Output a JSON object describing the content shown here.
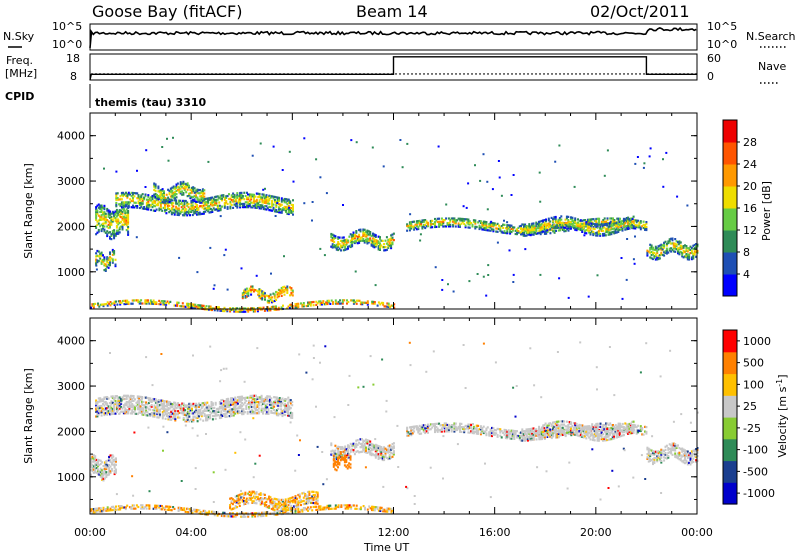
{
  "header": {
    "station": "Goose Bay (fitACF)",
    "beam": "Beam 14",
    "date": "02/Oct/2011"
  },
  "panels": {
    "nsky": {
      "label": "N.Sky",
      "ticks": [
        "10^5",
        "10^0"
      ]
    },
    "nsearch": {
      "label": "N.Search",
      "ticks": [
        "10^5",
        "10^0"
      ]
    },
    "freq": {
      "label_line1": "Freq.",
      "label_line2": "[MHz]",
      "ticks": [
        "18",
        "8"
      ]
    },
    "nave": {
      "label": "Nave",
      "ticks": [
        "60",
        "0"
      ]
    },
    "cpid": {
      "label": "CPID",
      "value": "themis (tau) 3310"
    }
  },
  "colors": {
    "power_scale": [
      "#0000ff",
      "#1e4fb4",
      "#2e8b57",
      "#66cc44",
      "#eedd00",
      "#ff9900",
      "#ff5500",
      "#ee0000"
    ],
    "velocity_scale": [
      "#0000cc",
      "#1a3e8f",
      "#2e8b57",
      "#88cc33",
      "#c8c8c8",
      "#ffc000",
      "#ff8000",
      "#ff0000"
    ],
    "ground_scatter": "#bebebe"
  },
  "chart_data": [
    {
      "type": "heatmap",
      "title": "",
      "xlabel": "Time UT",
      "ylabel": "Slant Range [km]",
      "xlim": [
        "00:00",
        "24:00"
      ],
      "ylim": [
        180,
        4500
      ],
      "yticks": [
        "1000",
        "2000",
        "3000",
        "4000"
      ],
      "xticks": [
        "00:00",
        "04:00",
        "08:00",
        "12:00",
        "16:00",
        "20:00",
        "00:00"
      ],
      "colorbar": {
        "label": "Power [dB]",
        "ticks": [
          "4",
          "8",
          "12",
          "16",
          "20",
          "24",
          "28"
        ],
        "range": [
          0,
          32
        ]
      },
      "bands": [
        {
          "t_start": 0.2,
          "t_end": 1.0,
          "range_center": 1250,
          "thickness": 300
        },
        {
          "t_start": 0.2,
          "t_end": 1.5,
          "range_center": 2100,
          "thickness": 600
        },
        {
          "t_start": 1.0,
          "t_end": 8.0,
          "range_center": 2500,
          "thickness": 350
        },
        {
          "t_start": 2.5,
          "t_end": 4.5,
          "range_center": 2750,
          "thickness": 300
        },
        {
          "t_start": 9.5,
          "t_end": 12.0,
          "range_center": 1700,
          "thickness": 300
        },
        {
          "t_start": 12.5,
          "t_end": 22.0,
          "range_center": 2000,
          "thickness": 200
        },
        {
          "t_start": 17.0,
          "t_end": 21.5,
          "range_center": 2000,
          "thickness": 250
        },
        {
          "t_start": 22.0,
          "t_end": 24.0,
          "range_center": 1500,
          "thickness": 300
        },
        {
          "t_start": 0.0,
          "t_end": 12.0,
          "range_center": 250,
          "thickness": 100
        },
        {
          "t_start": 6.0,
          "t_end": 8.0,
          "range_center": 500,
          "thickness": 200
        }
      ]
    },
    {
      "type": "heatmap",
      "title": "",
      "xlabel": "Time UT",
      "ylabel": "Slant Range [km]",
      "xlim": [
        "00:00",
        "24:00"
      ],
      "ylim": [
        180,
        4500
      ],
      "yticks": [
        "1000",
        "2000",
        "3000",
        "4000"
      ],
      "xticks": [
        "00:00",
        "04:00",
        "08:00",
        "12:00",
        "16:00",
        "20:00",
        "00:00"
      ],
      "colorbar": {
        "label": "Velocity [m s",
        "label_sup": "-1",
        "label_end": "]",
        "ticks": [
          "1000",
          "500",
          "100",
          "25",
          "-25",
          "-100",
          "-500",
          "-1000"
        ]
      },
      "bands": [
        {
          "t_start": 0.0,
          "t_end": 1.0,
          "range_center": 1200,
          "thickness": 400
        },
        {
          "t_start": 0.2,
          "t_end": 8.0,
          "range_center": 2500,
          "thickness": 400
        },
        {
          "t_start": 9.5,
          "t_end": 12.0,
          "range_center": 1600,
          "thickness": 300
        },
        {
          "t_start": 9.6,
          "t_end": 10.3,
          "range_center": 1350,
          "thickness": 250
        },
        {
          "t_start": 12.5,
          "t_end": 22.0,
          "range_center": 2000,
          "thickness": 200
        },
        {
          "t_start": 17.0,
          "t_end": 21.5,
          "range_center": 2000,
          "thickness": 250
        },
        {
          "t_start": 22.0,
          "t_end": 24.0,
          "range_center": 1500,
          "thickness": 300
        },
        {
          "t_start": 0.0,
          "t_end": 12.0,
          "range_center": 250,
          "thickness": 100
        },
        {
          "t_start": 5.5,
          "t_end": 9.0,
          "range_center": 450,
          "thickness": 250
        }
      ]
    }
  ],
  "series_lines": {
    "nsky_level": 0.35,
    "nsky_end_level": 0.2,
    "nsky_end_start": 22.0,
    "freq_low": 10.2,
    "freq_high": 16.9,
    "freq_high_start": 12.0,
    "freq_high_end": 22.0,
    "nave_dotted": 14
  }
}
